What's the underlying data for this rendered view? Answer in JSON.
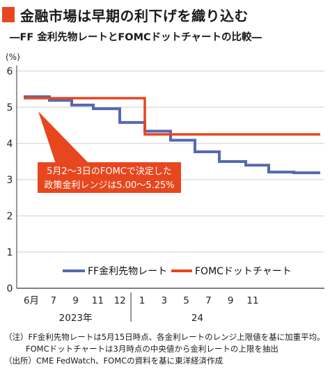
{
  "header": {
    "title": "金融市場は早期の利下げを織り込む",
    "subtitle": "―FF 金利先物レートとFOMCドットチャートの比較―",
    "accent_color": "#e8461e"
  },
  "chart_data": {
    "type": "line",
    "y_unit": "(%)",
    "ylim": [
      0,
      6
    ],
    "y_ticks": [
      "0",
      "1",
      "2",
      "3",
      "4",
      "5",
      "6"
    ],
    "x_tick_labels": [
      "6月",
      "7",
      "9",
      "11",
      "12",
      "1",
      "3",
      "5",
      "7",
      "9",
      "11"
    ],
    "year_labels": [
      "2023年",
      "24"
    ],
    "grid": true,
    "legend_position": "center-bottom",
    "series": [
      {
        "name": "FF金利先物レート",
        "color": "#5469b0",
        "values": [
          5.29,
          5.19,
          5.06,
          4.96,
          4.58,
          4.34,
          4.09,
          3.77,
          3.5,
          3.4,
          3.21,
          3.19
        ]
      },
      {
        "name": "FOMCドットチャート",
        "color": "#e8461e",
        "values": [
          5.25,
          5.25,
          5.25,
          5.25,
          5.25,
          4.25,
          4.25,
          4.25,
          4.25,
          4.25,
          4.25,
          4.25
        ]
      }
    ],
    "annotation": {
      "lines": [
        "5月2～3日のFOMCで決定した",
        "政策金利レンジは5.00～5.25%"
      ],
      "box_color": "#e8461e"
    }
  },
  "notes": {
    "line1": "（注）FF金利先物レートは5月15日時点、各金利レートのレンジ上限値を基に加重平均。",
    "line2": "FOMCドットチャートは3月時点の中央値から金利レートの上限を抽出",
    "line3": "（出所）CME FedWatch、FOMCの資料を基に東洋経済作成"
  }
}
